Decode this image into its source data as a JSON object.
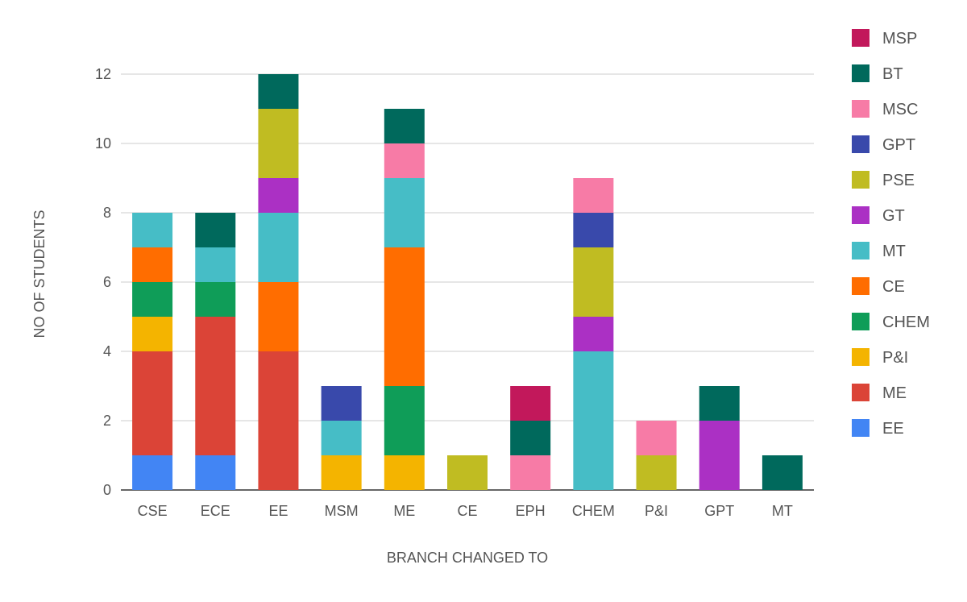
{
  "chart_data": {
    "type": "bar",
    "stacked": true,
    "title": "",
    "xlabel": "BRANCH CHANGED TO",
    "ylabel": "NO OF STUDENTS",
    "ylim": [
      0,
      12
    ],
    "yticks": [
      0,
      2,
      4,
      6,
      8,
      10,
      12
    ],
    "grid": true,
    "legend_position": "right",
    "categories": [
      "CSE",
      "ECE",
      "EE",
      "MSM",
      "ME",
      "CE",
      "EPH",
      "CHEM",
      "P&I",
      "GPT",
      "MT"
    ],
    "series": [
      {
        "name": "EE",
        "color": "#4285F4",
        "values": [
          1,
          1,
          0,
          0,
          0,
          0,
          0,
          0,
          0,
          0,
          0
        ]
      },
      {
        "name": "ME",
        "color": "#DB4437",
        "values": [
          3,
          4,
          4,
          0,
          0,
          0,
          0,
          0,
          0,
          0,
          0
        ]
      },
      {
        "name": "P&I",
        "color": "#F4B400",
        "values": [
          1,
          0,
          0,
          1,
          1,
          0,
          0,
          0,
          0,
          0,
          0
        ]
      },
      {
        "name": "CHEM",
        "color": "#0F9D58",
        "values": [
          1,
          1,
          0,
          0,
          2,
          0,
          0,
          0,
          0,
          0,
          0
        ]
      },
      {
        "name": "CE",
        "color": "#FF6D00",
        "values": [
          1,
          0,
          2,
          0,
          4,
          0,
          0,
          0,
          0,
          0,
          0
        ]
      },
      {
        "name": "MT",
        "color": "#46BDC6",
        "values": [
          1,
          1,
          2,
          1,
          2,
          0,
          0,
          4,
          0,
          0,
          0
        ]
      },
      {
        "name": "GT",
        "color": "#AB30C4",
        "values": [
          0,
          0,
          1,
          0,
          0,
          0,
          0,
          1,
          0,
          2,
          0
        ]
      },
      {
        "name": "PSE",
        "color": "#C0BC22",
        "values": [
          0,
          0,
          2,
          0,
          0,
          1,
          0,
          2,
          1,
          0,
          0
        ]
      },
      {
        "name": "GPT",
        "color": "#3949AB",
        "values": [
          0,
          0,
          0,
          1,
          0,
          0,
          0,
          1,
          0,
          0,
          0
        ]
      },
      {
        "name": "MSC",
        "color": "#F77BA6",
        "values": [
          0,
          0,
          0,
          0,
          1,
          0,
          1,
          1,
          1,
          0,
          0
        ]
      },
      {
        "name": "BT",
        "color": "#00695C",
        "values": [
          0,
          1,
          1,
          0,
          1,
          0,
          1,
          0,
          0,
          1,
          1
        ]
      },
      {
        "name": "MSP",
        "color": "#C2185B",
        "values": [
          0,
          0,
          0,
          0,
          0,
          0,
          1,
          0,
          0,
          0,
          0
        ]
      }
    ]
  }
}
